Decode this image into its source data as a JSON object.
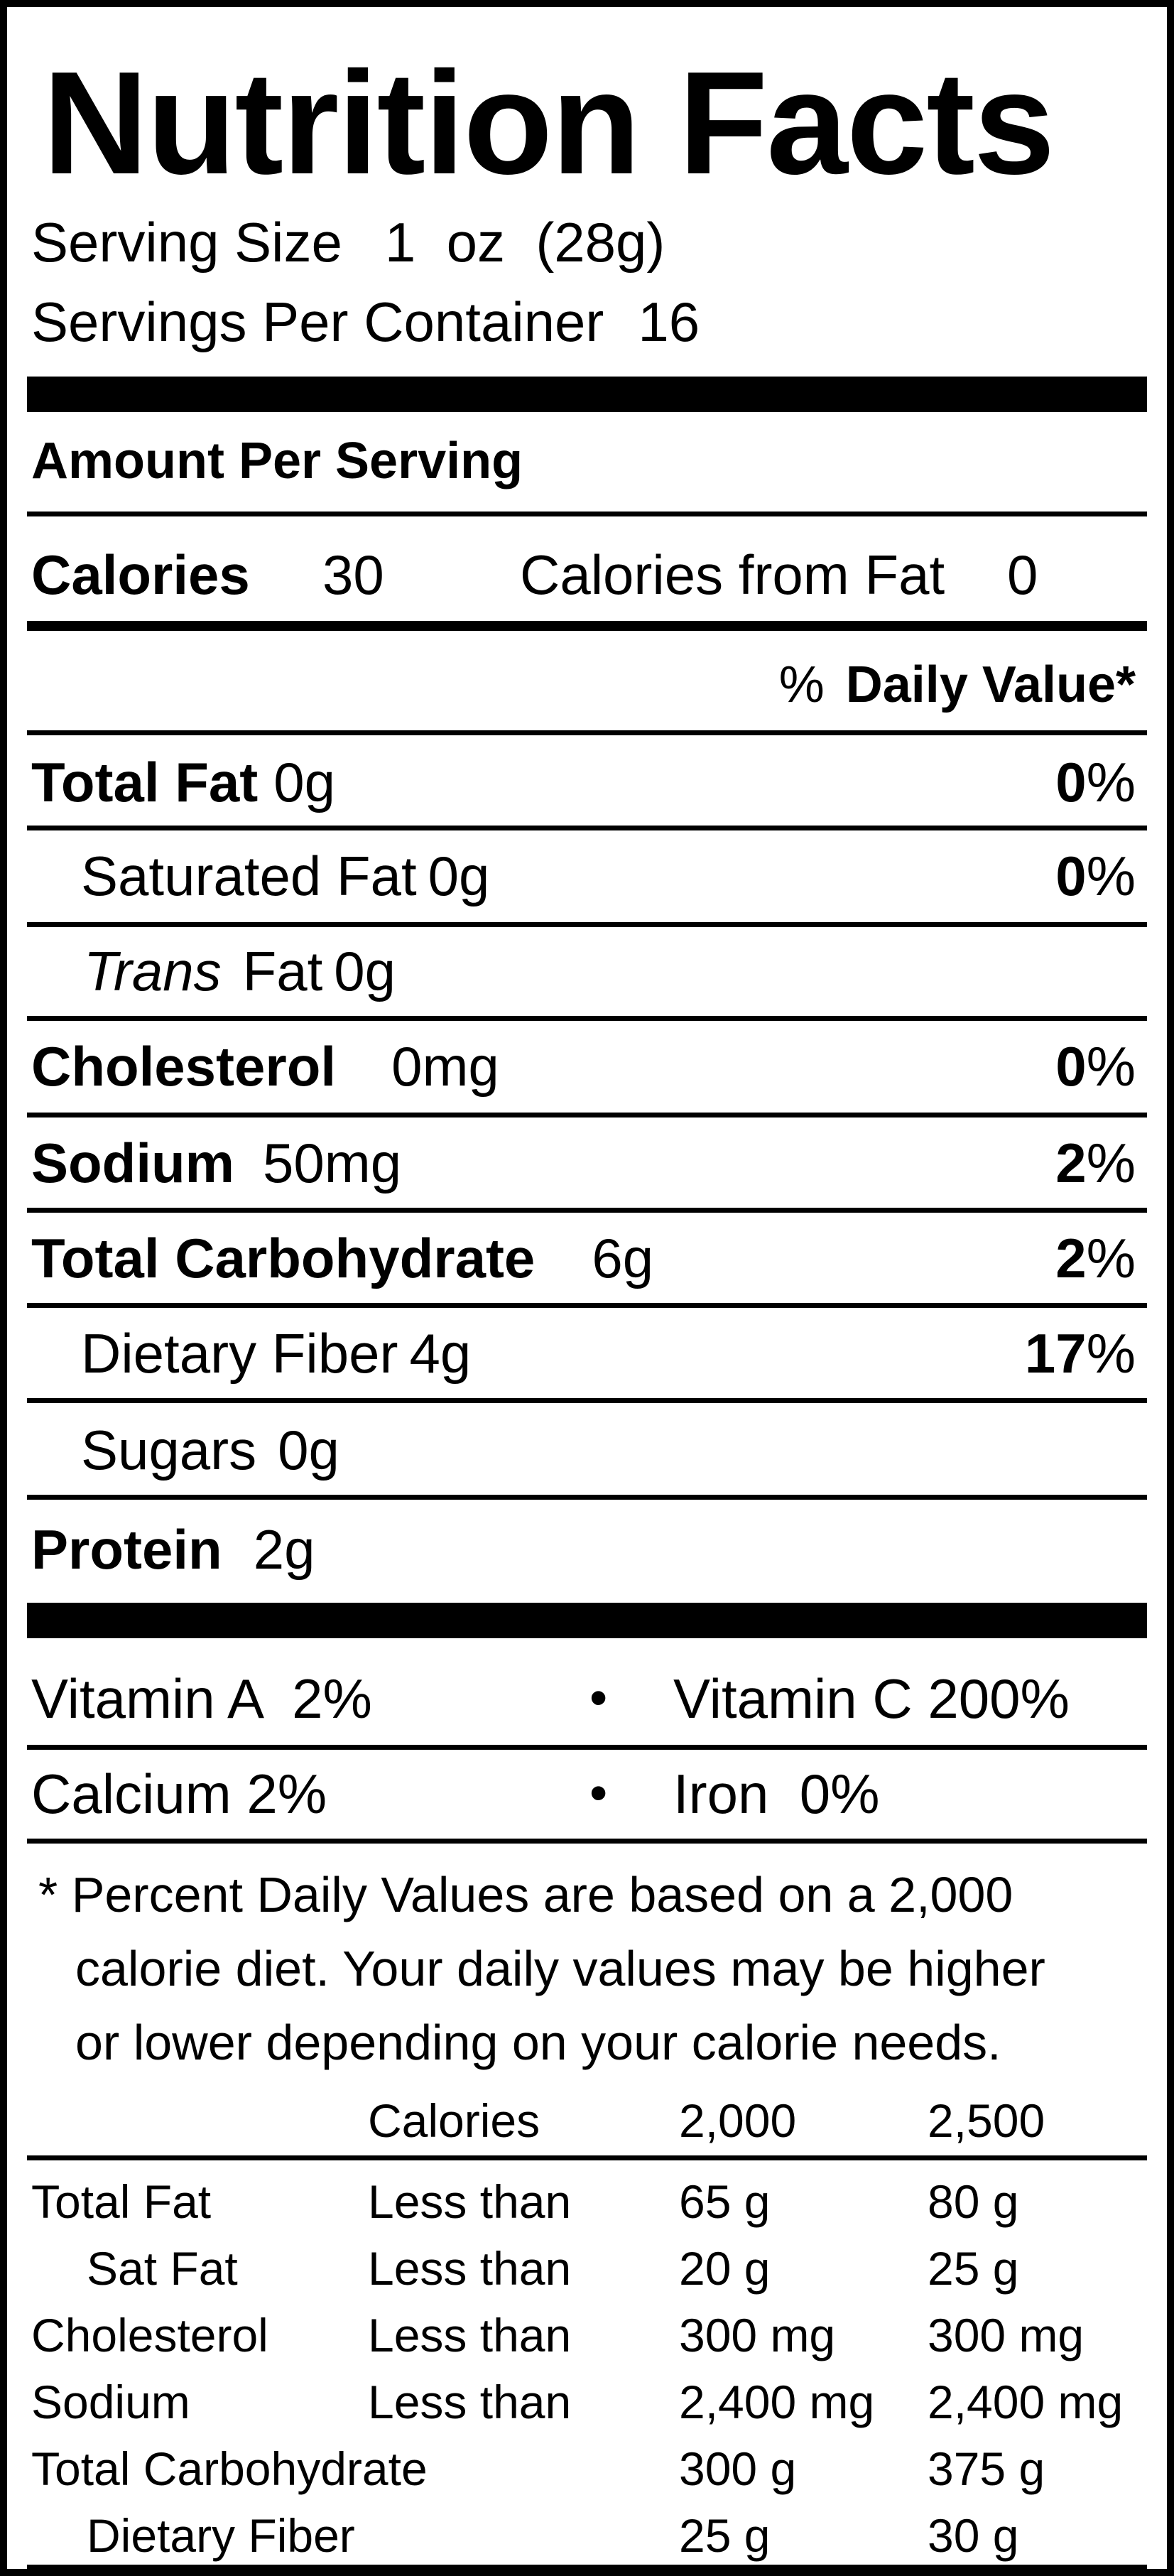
{
  "title": "Nutrition Facts",
  "serving_size_label": "Serving Size",
  "serving_size_value": "1  oz  (28g)",
  "servings_per_container_label": "Servings Per Container",
  "servings_per_container_value": "16",
  "amount_per_serving": "Amount Per Serving",
  "calories_label": "Calories",
  "calories_value": "30",
  "calories_from_fat_label": "Calories from Fat",
  "calories_from_fat_value": "0",
  "daily_value_header": {
    "prefix": "%",
    "label": "Daily Value*"
  },
  "nutrients": {
    "total_fat": {
      "label": "Total Fat",
      "amount": "0g",
      "dv_num": "0",
      "dv_pct": "%"
    },
    "saturated_fat": {
      "label": "Saturated Fat",
      "amount": "0g",
      "dv_num": "0",
      "dv_pct": "%"
    },
    "trans_fat": {
      "label_italic": "Trans",
      "label": "Fat",
      "amount": "0g"
    },
    "cholesterol": {
      "label": "Cholesterol",
      "amount": "0mg",
      "dv_num": "0",
      "dv_pct": "%"
    },
    "sodium": {
      "label": "Sodium",
      "amount": "50mg",
      "dv_num": "2",
      "dv_pct": "%"
    },
    "total_carbohydrate": {
      "label": "Total Carbohydrate",
      "amount": "6g",
      "dv_num": "2",
      "dv_pct": "%"
    },
    "dietary_fiber": {
      "label": "Dietary Fiber",
      "amount": "4g",
      "dv_num": "17",
      "dv_pct": "%"
    },
    "sugars": {
      "label": "Sugars",
      "amount": "0g"
    },
    "protein": {
      "label": "Protein",
      "amount": "2g"
    }
  },
  "vitamins": {
    "vitamin_a": "Vitamin A  2%",
    "vitamin_c": "Vitamin C 200%",
    "calcium": "Calcium 2%",
    "iron": "Iron  0%",
    "bullet": "•"
  },
  "footnote": [
    "* Percent Daily Values are based on a 2,000",
    "calorie diet. Your daily values may be higher",
    "or lower depending on your calorie needs."
  ],
  "reference_table": {
    "header": {
      "calories": "Calories",
      "col1": "2,000",
      "col2": "2,500"
    },
    "rows": [
      {
        "name": "Total Fat",
        "qualifier": "Less than",
        "v1": "65 g",
        "v2": "80 g"
      },
      {
        "name": "Sat Fat",
        "qualifier": "Less than",
        "v1": "20 g",
        "v2": "25 g"
      },
      {
        "name": "Cholesterol",
        "qualifier": "Less than",
        "v1": "300 mg",
        "v2": "300 mg"
      },
      {
        "name": "Sodium",
        "qualifier": "Less than",
        "v1": "2,400 mg",
        "v2": "2,400 mg"
      },
      {
        "name": "Total Carbohydrate",
        "qualifier": "",
        "v1": "300 g",
        "v2": "375 g"
      },
      {
        "name": "Dietary Fiber",
        "qualifier": "",
        "v1": "25 g",
        "v2": "30 g"
      }
    ]
  }
}
